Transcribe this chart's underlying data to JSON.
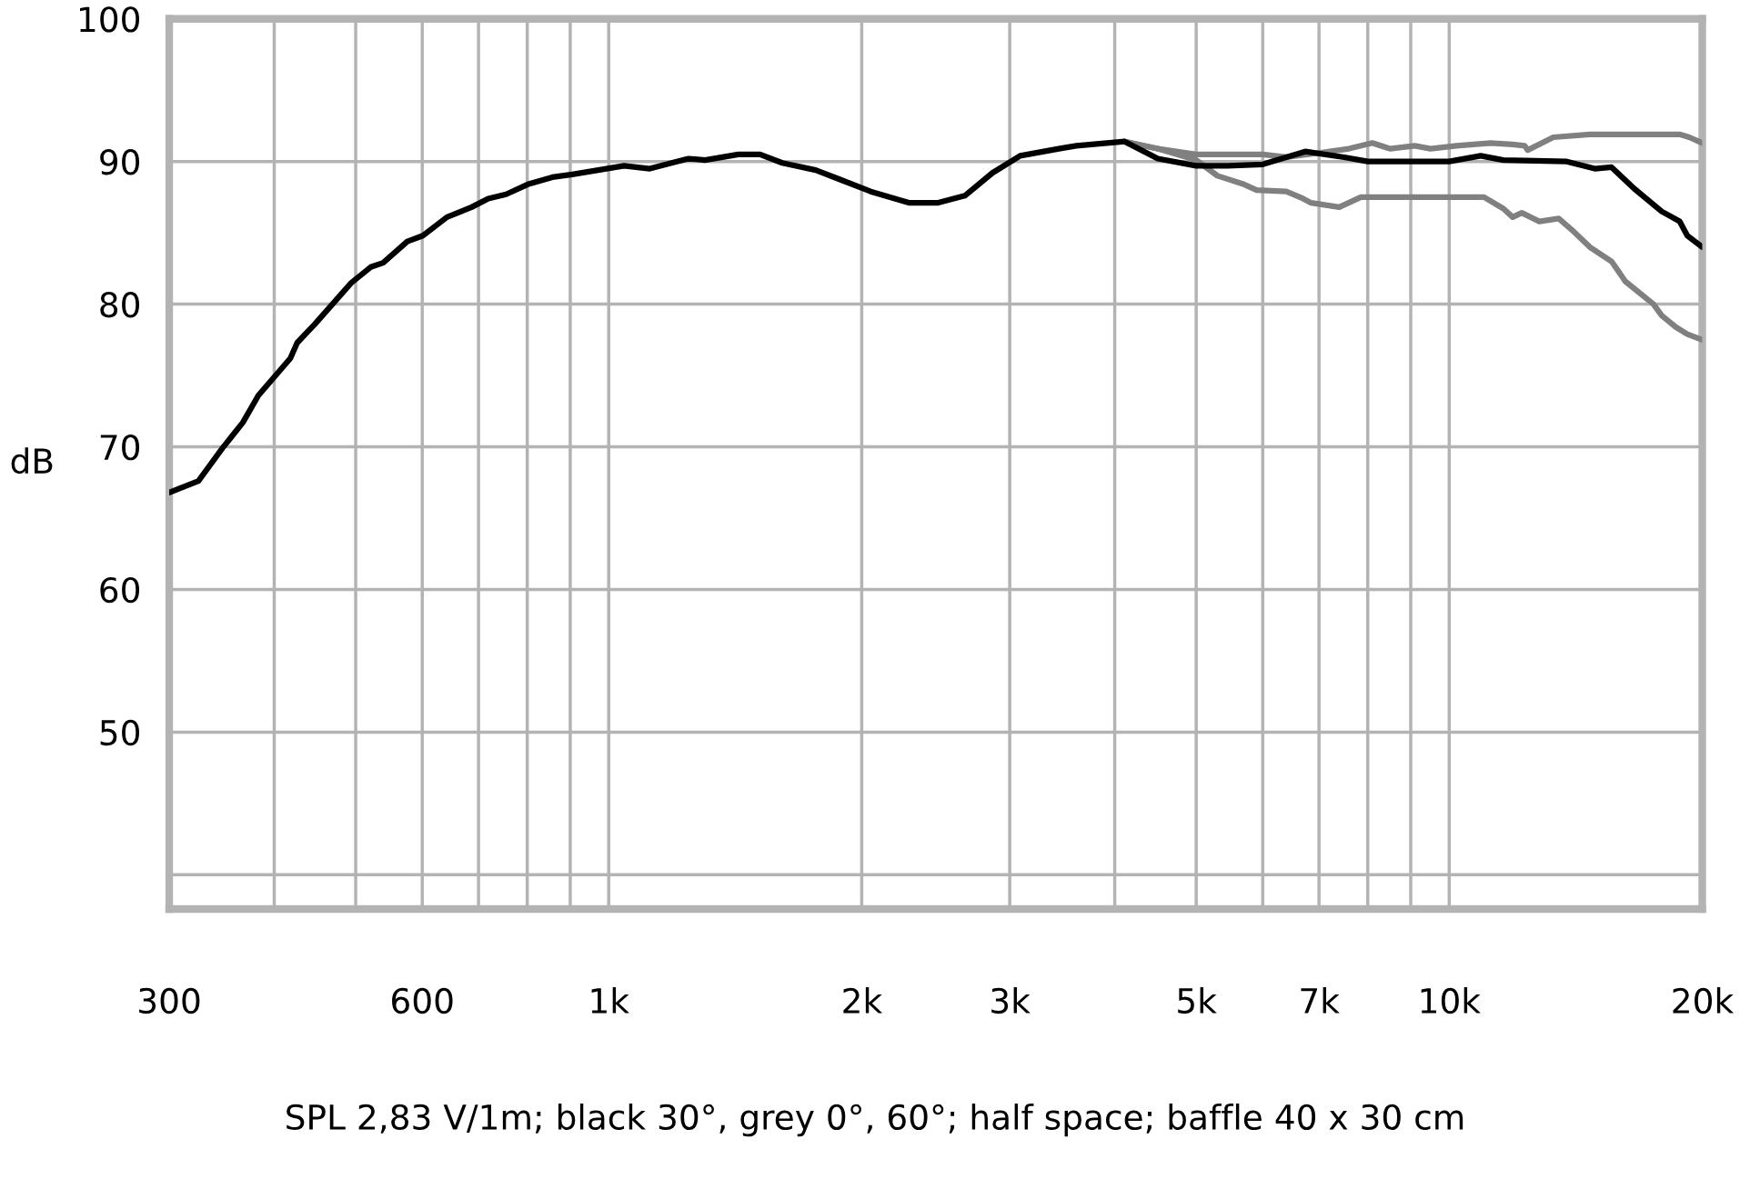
{
  "chart_data": {
    "type": "line",
    "ylabel": "dB",
    "log": "x",
    "grid": true,
    "marker": "none",
    "line_style": "solid",
    "xlim": [
      300,
      20000
    ],
    "ylim": [
      37.6,
      100
    ],
    "xticks": [
      300,
      {
        "value": 400,
        "label": null
      },
      {
        "value": 500,
        "label": null
      },
      600,
      {
        "value": 700,
        "label": null
      },
      {
        "value": 800,
        "label": null
      },
      {
        "value": 900,
        "label": null
      },
      {
        "value": 1000,
        "label": "1k"
      },
      {
        "value": 2000,
        "label": "2k"
      },
      {
        "value": 3000,
        "label": "3k"
      },
      {
        "value": 4000,
        "label": null
      },
      {
        "value": 5000,
        "label": "5k"
      },
      {
        "value": 6000,
        "label": null
      },
      {
        "value": 7000,
        "label": "7k"
      },
      {
        "value": 8000,
        "label": null
      },
      {
        "value": 9000,
        "label": null
      },
      {
        "value": 10000,
        "label": "10k"
      },
      {
        "value": 20000,
        "label": "20k"
      }
    ],
    "yticks": [
      {
        "value": 40,
        "label": null
      },
      50,
      60,
      70,
      80,
      90,
      100
    ],
    "series": [
      {
        "color": "#808080",
        "x": [
          4110,
          4500,
          5000,
          6000,
          6400,
          7000,
          7600,
          8100,
          8500,
          9100,
          9500,
          10200,
          11200,
          11900,
          12300,
          12400,
          13300,
          14700,
          17700,
          18800,
          19300,
          20000
        ],
        "values": [
          91.4,
          90.9,
          90.5,
          90.5,
          90.3,
          90.6,
          90.9,
          91.3,
          90.9,
          91.1,
          90.9,
          91.1,
          91.3,
          91.2,
          91.1,
          90.8,
          91.7,
          91.9,
          91.9,
          91.9,
          91.7,
          91.3
        ]
      },
      {
        "color": "#808080",
        "x": [
          4110,
          4500,
          5000,
          5300,
          5700,
          5900,
          6400,
          6700,
          6850,
          7400,
          7850,
          8000,
          11000,
          11600,
          11900,
          12200,
          12800,
          13500,
          14000,
          14700,
          15600,
          16200,
          17500,
          17900,
          18600,
          19200,
          20000
        ],
        "values": [
          91.4,
          90.9,
          90.1,
          89.0,
          88.4,
          88.0,
          87.9,
          87.4,
          87.1,
          86.8,
          87.5,
          87.5,
          87.5,
          86.7,
          86.1,
          86.4,
          85.8,
          86.0,
          85.2,
          84.0,
          83.0,
          81.6,
          80.0,
          79.2,
          78.4,
          77.9,
          77.5
        ]
      },
      {
        "color": "#000000",
        "x": [
          300,
          325,
          347,
          367,
          383,
          418,
          426,
          447,
          494,
          521,
          539,
          576,
          601,
          642,
          687,
          719,
          755,
          801,
          857,
          905,
          1043,
          1119,
          1188,
          1244,
          1302,
          1426,
          1514,
          1609,
          1763,
          1873,
          2050,
          2280,
          2460,
          2653,
          2861,
          3087,
          3432,
          3600,
          4110,
          4500,
          5000,
          5450,
          6000,
          6740,
          7500,
          8000,
          10000,
          10900,
          11600,
          13800,
          14900,
          15600,
          16600,
          17900,
          18800,
          19200,
          20000
        ],
        "values": [
          66.8,
          67.6,
          69.9,
          71.7,
          73.6,
          76.2,
          77.3,
          78.6,
          81.5,
          82.6,
          82.9,
          84.4,
          84.8,
          86.1,
          86.8,
          87.4,
          87.7,
          88.4,
          88.9,
          89.1,
          89.7,
          89.5,
          89.9,
          90.2,
          90.1,
          90.5,
          90.5,
          89.9,
          89.4,
          88.8,
          87.9,
          87.1,
          87.1,
          87.6,
          89.2,
          90.4,
          90.9,
          91.1,
          91.4,
          90.2,
          89.7,
          89.7,
          89.8,
          90.7,
          90.3,
          90.0,
          90.0,
          90.4,
          90.1,
          90.0,
          89.5,
          89.6,
          88.1,
          86.5,
          85.8,
          84.8,
          84.0
        ]
      }
    ],
    "annotations": [
      "SPL 2,83 V/1m; black 30°, grey 0°, 60°; half space; baffle 40 x 30 cm"
    ]
  }
}
